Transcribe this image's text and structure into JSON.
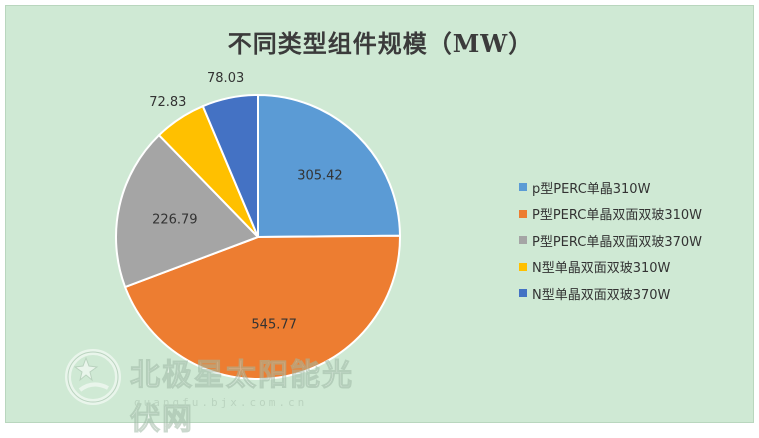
{
  "chart_data": {
    "type": "pie",
    "title": "不同类型组件规模（MW）",
    "categories": [
      "p型PERC单晶310W",
      "P型PERC单晶双面双玻310W",
      "P型PERC单晶双面双玻370W",
      "N型单晶双面双玻310W",
      "N型单晶双面双玻370W"
    ],
    "values": [
      305.42,
      545.77,
      226.79,
      72.83,
      78.03
    ],
    "value_labels": [
      "305.42",
      "545.77",
      "226.79",
      "72.83",
      "78.03"
    ],
    "colors": [
      "#5b9bd5",
      "#ed7d31",
      "#a5a5a5",
      "#ffc000",
      "#4472c4"
    ],
    "start_angle_deg": 0,
    "direction": "clockwise",
    "legend_position": "right"
  },
  "watermark": {
    "text": "北极星太阳能光伏网",
    "subtext": "guangfu.bjx.com.cn"
  }
}
